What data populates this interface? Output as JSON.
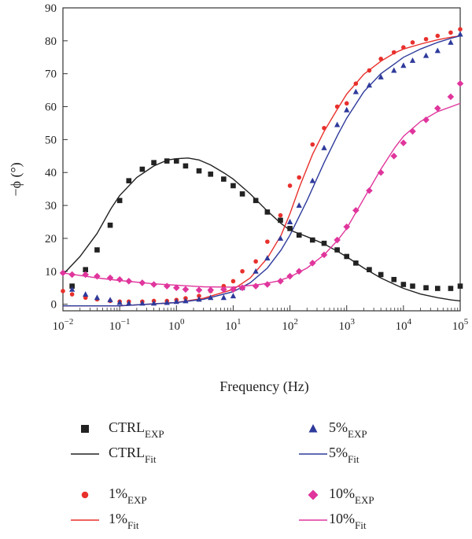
{
  "chart_data": {
    "type": "scatter",
    "title": "",
    "xlabel": "Frequency (Hz)",
    "ylabel": "−ϕ (°)",
    "x_scale": "log",
    "xlim": [
      0.01,
      100000
    ],
    "ylim": [
      -2,
      90
    ],
    "x_ticks": [
      {
        "value": 0.01,
        "base": "10",
        "exp": "−2"
      },
      {
        "value": 0.1,
        "base": "10",
        "exp": "−1"
      },
      {
        "value": 1,
        "base": "10",
        "exp": "0"
      },
      {
        "value": 10,
        "base": "10",
        "exp": "1"
      },
      {
        "value": 100,
        "base": "10",
        "exp": "2"
      },
      {
        "value": 1000,
        "base": "10",
        "exp": "3"
      },
      {
        "value": 10000,
        "base": "10",
        "exp": "4"
      },
      {
        "value": 100000,
        "base": "10",
        "exp": "5"
      }
    ],
    "y_ticks": [
      {
        "value": 0,
        "label": "0"
      },
      {
        "value": 10,
        "label": "10"
      },
      {
        "value": 20,
        "label": "20"
      },
      {
        "value": 30,
        "label": "30"
      },
      {
        "value": 40,
        "label": "40"
      },
      {
        "value": 50,
        "label": "50"
      },
      {
        "value": 60,
        "label": "60"
      },
      {
        "value": 70,
        "label": "70"
      },
      {
        "value": 80,
        "label": "80"
      },
      {
        "value": 90,
        "label": "90"
      }
    ],
    "grid": false,
    "legend_position": "bottom",
    "series": [
      {
        "key": "ctrl-exp",
        "name_main": "CTRL",
        "name_sub": "EXP",
        "kind": "points",
        "marker": "square",
        "color": "#222222",
        "x": [
          0.0145,
          0.025,
          0.04,
          0.068,
          0.1,
          0.145,
          0.25,
          0.4,
          0.68,
          1.0,
          1.45,
          2.5,
          4.0,
          6.8,
          10,
          14.5,
          25,
          40,
          68,
          100,
          145,
          250,
          400,
          680,
          1000,
          1450,
          2500,
          4000,
          6800,
          10000,
          14500,
          25000,
          40000,
          68000,
          100000
        ],
        "y": [
          5.5,
          10.5,
          16.5,
          24,
          31.5,
          37.5,
          41,
          43,
          43.5,
          43.5,
          42,
          40.5,
          39.5,
          38,
          36,
          33.5,
          31.5,
          28,
          25.5,
          23,
          21,
          19.5,
          18.5,
          16.5,
          14.5,
          12.5,
          10.5,
          9,
          7.5,
          6,
          5.5,
          5,
          4.8,
          4.8,
          5.5
        ]
      },
      {
        "key": "ctrl-fit",
        "name_main": "CTRL",
        "name_sub": "Fit",
        "kind": "line",
        "color": "#222222",
        "x": [
          0.01,
          0.02,
          0.04,
          0.07,
          0.1,
          0.2,
          0.4,
          0.7,
          1,
          1.6,
          2.5,
          4,
          7,
          10,
          20,
          40,
          70,
          100,
          200,
          400,
          700,
          1000,
          2000,
          4000,
          7000,
          10000,
          20000,
          40000,
          70000,
          100000
        ],
        "y": [
          9,
          14.5,
          21.5,
          29,
          33,
          38.5,
          42,
          43.8,
          44.2,
          44.4,
          43.8,
          42.3,
          39.8,
          38,
          33.5,
          28.3,
          24.5,
          22.5,
          20.5,
          18.3,
          16,
          14.4,
          11,
          8,
          6,
          4.8,
          3.1,
          2,
          1.3,
          1
        ]
      },
      {
        "key": "p1-exp",
        "name_main": "1%",
        "name_sub": "EXP",
        "kind": "points",
        "marker": "circle",
        "color": "#e8302c",
        "x": [
          0.01,
          0.0145,
          0.025,
          0.04,
          0.068,
          0.1,
          0.145,
          0.25,
          0.4,
          0.68,
          1.0,
          1.45,
          2.5,
          4.0,
          6.8,
          10,
          14.5,
          25,
          40,
          68,
          100,
          145,
          250,
          400,
          680,
          1000,
          1450,
          2500,
          4000,
          6800,
          10000,
          14500,
          25000,
          40000,
          68000,
          100000
        ],
        "y": [
          4,
          3,
          2,
          1.5,
          1,
          0.8,
          0.8,
          0.8,
          1,
          1,
          1.3,
          1.8,
          2.5,
          4,
          5.5,
          7,
          10,
          13,
          19,
          27,
          36,
          38.5,
          48.5,
          53.5,
          60,
          61,
          67,
          71,
          74.5,
          76.5,
          78,
          79.5,
          80.5,
          81.5,
          82.5,
          83.5
        ]
      },
      {
        "key": "p1-fit",
        "name_main": "1%",
        "name_sub": "Fit",
        "kind": "line",
        "color": "#e8302c",
        "x": [
          0.01,
          0.1,
          1,
          3,
          10,
          20,
          40,
          70,
          100,
          150,
          250,
          400,
          700,
          1000,
          2000,
          4000,
          7000,
          10000,
          20000,
          40000,
          70000,
          100000
        ],
        "y": [
          -0.5,
          -0.5,
          0.5,
          1.8,
          4.5,
          8,
          14,
          21,
          27.5,
          36,
          45.5,
          52.5,
          59.5,
          63.8,
          69.8,
          73.8,
          76.3,
          77.5,
          79,
          80.3,
          81.1,
          81.5
        ]
      },
      {
        "key": "p5-exp",
        "name_main": "5%",
        "name_sub": "EXP",
        "kind": "points",
        "marker": "triangle",
        "color": "#2e3a9b",
        "x": [
          0.0145,
          0.025,
          0.04,
          0.068,
          0.1,
          0.145,
          0.25,
          0.4,
          0.68,
          1.0,
          1.45,
          2.5,
          4.0,
          6.8,
          10,
          14.5,
          25,
          40,
          68,
          100,
          145,
          250,
          400,
          680,
          1000,
          1450,
          2500,
          4000,
          6800,
          10000,
          14500,
          25000,
          40000,
          68000,
          100000
        ],
        "y": [
          4.5,
          3,
          2,
          1.3,
          0.5,
          0.3,
          0.3,
          0.3,
          0.5,
          0.8,
          1,
          1.5,
          2,
          2,
          2.5,
          5,
          10,
          14,
          20,
          25,
          30,
          37.5,
          47.5,
          54.5,
          59,
          64.5,
          66.5,
          69,
          71,
          72.5,
          74,
          75.5,
          77,
          79.5,
          82
        ]
      },
      {
        "key": "p5-fit",
        "name_main": "5%",
        "name_sub": "Fit",
        "kind": "line",
        "color": "#2e3a9b",
        "x": [
          0.01,
          0.1,
          1,
          3,
          10,
          20,
          40,
          70,
          100,
          200,
          400,
          700,
          1000,
          2000,
          4000,
          7000,
          10000,
          20000,
          40000,
          70000,
          100000
        ],
        "y": [
          -0.5,
          -0.5,
          0.5,
          1.5,
          3.8,
          6.5,
          11,
          16.5,
          21,
          31.5,
          43,
          51.5,
          56.5,
          64.5,
          70,
          73,
          75,
          77.5,
          79.5,
          80.8,
          81.5
        ]
      },
      {
        "key": "p10-exp",
        "name_main": "10%",
        "name_sub": "EXP",
        "kind": "points",
        "marker": "diamond",
        "color": "#e0359c",
        "x": [
          0.01,
          0.0145,
          0.025,
          0.04,
          0.068,
          0.1,
          0.145,
          0.25,
          0.4,
          0.68,
          1.0,
          1.45,
          2.5,
          4.0,
          6.8,
          10,
          14.5,
          25,
          40,
          68,
          100,
          145,
          250,
          400,
          680,
          1000,
          1450,
          2500,
          4000,
          6800,
          10000,
          14500,
          25000,
          40000,
          68000,
          100000
        ],
        "y": [
          9.5,
          9,
          9,
          8.5,
          8,
          7.5,
          7,
          6.5,
          6,
          5.5,
          5,
          4.5,
          4.3,
          4.3,
          4.5,
          4.5,
          5,
          5.5,
          6,
          7,
          8.5,
          10,
          12.5,
          15,
          19.5,
          23.5,
          28.5,
          34.5,
          40,
          45,
          49,
          52.5,
          56,
          59.5,
          63,
          67
        ]
      },
      {
        "key": "p10-fit",
        "name_main": "10%",
        "name_sub": "Fit",
        "kind": "line",
        "color": "#e0359c",
        "x": [
          0.01,
          0.04,
          0.1,
          0.4,
          1,
          3,
          10,
          30,
          60,
          100,
          200,
          400,
          700,
          1000,
          2000,
          4000,
          7000,
          10000,
          20000,
          40000,
          70000,
          100000
        ],
        "y": [
          9.5,
          8,
          7.2,
          6.2,
          5.8,
          5.3,
          5.2,
          6,
          7,
          8.3,
          11,
          15,
          19.5,
          23,
          32,
          41,
          47.5,
          51,
          55.5,
          58.5,
          60,
          61
        ]
      }
    ]
  }
}
